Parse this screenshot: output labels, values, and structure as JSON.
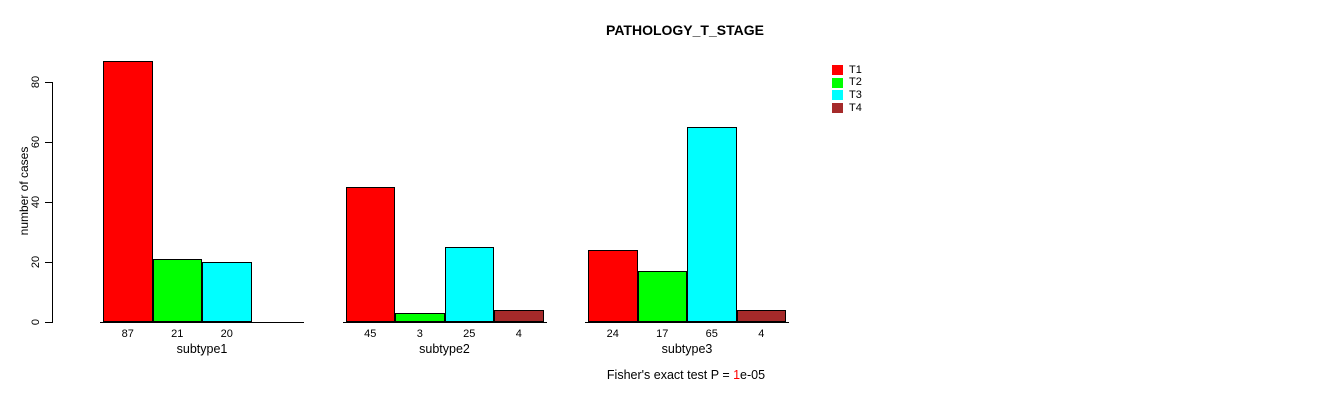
{
  "chart_data": {
    "type": "bar",
    "title": "PATHOLOGY_T_STAGE",
    "xlabel": "",
    "ylabel": "number of cases",
    "categories": [
      "subtype1",
      "subtype2",
      "subtype3"
    ],
    "series": [
      {
        "name": "T1",
        "color": "#FF0000",
        "values": [
          87,
          45,
          24
        ]
      },
      {
        "name": "T2",
        "color": "#00FF00",
        "values": [
          21,
          3,
          17
        ]
      },
      {
        "name": "T3",
        "color": "#00FFFF",
        "values": [
          20,
          25,
          65
        ]
      },
      {
        "name": "T4",
        "color": "#A52A2A",
        "values": [
          0,
          4,
          4
        ]
      }
    ],
    "yticks": [
      0,
      20,
      40,
      60,
      80
    ],
    "ylim": [
      0,
      88
    ],
    "grid": false,
    "bar_value_labels": true,
    "legend_position": "top-right",
    "annotation": {
      "prefix": "Fisher's exact test P = ",
      "highlight": "1",
      "suffix": "e-05",
      "highlight_color": "#FF0000",
      "full_text": "Fisher's exact test P = 1e-05"
    }
  },
  "colors": {
    "background": "#FFFFFF",
    "axis": "#000000",
    "text": "#000000"
  }
}
